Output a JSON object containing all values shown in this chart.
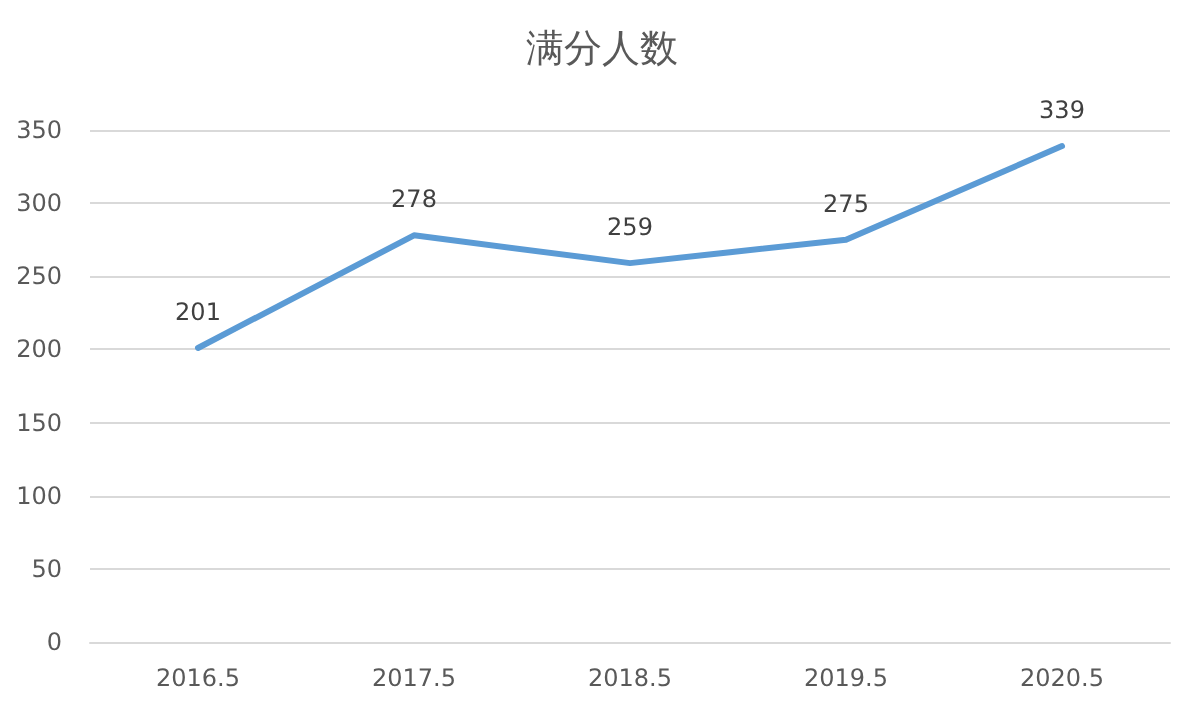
{
  "chart_data": {
    "type": "line",
    "title": "满分人数",
    "categories": [
      "2016.5",
      "2017.5",
      "2018.5",
      "2019.5",
      "2020.5"
    ],
    "series": [
      {
        "color": "#5b9bd5",
        "values": [
          201,
          278,
          259,
          275,
          339
        ]
      }
    ],
    "ylim": [
      0,
      350
    ],
    "yticks": [
      0,
      50,
      100,
      150,
      200,
      250,
      300,
      350
    ],
    "grid": "y",
    "data_labels": true,
    "marker": "none",
    "line_style": "solid",
    "legend": false
  }
}
